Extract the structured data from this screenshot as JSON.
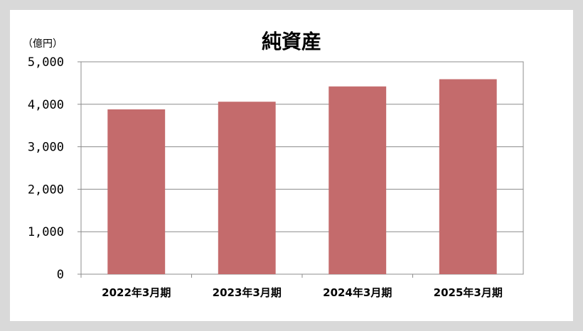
{
  "chart_data": {
    "type": "bar",
    "title": "純資産",
    "unit_label": "（億円）",
    "categories": [
      "2022年3月期",
      "2023年3月期",
      "2024年3月期",
      "2025年3月期"
    ],
    "values": [
      3880,
      4060,
      4420,
      4590
    ],
    "ylim": [
      0,
      5000
    ],
    "yticks": [
      0,
      1000,
      2000,
      3000,
      4000,
      5000
    ],
    "ytick_labels": [
      "0",
      "1,000",
      "2,000",
      "3,000",
      "4,000",
      "5,000"
    ],
    "grid": true,
    "legend": "none",
    "bar_color": "#c46b6c"
  }
}
